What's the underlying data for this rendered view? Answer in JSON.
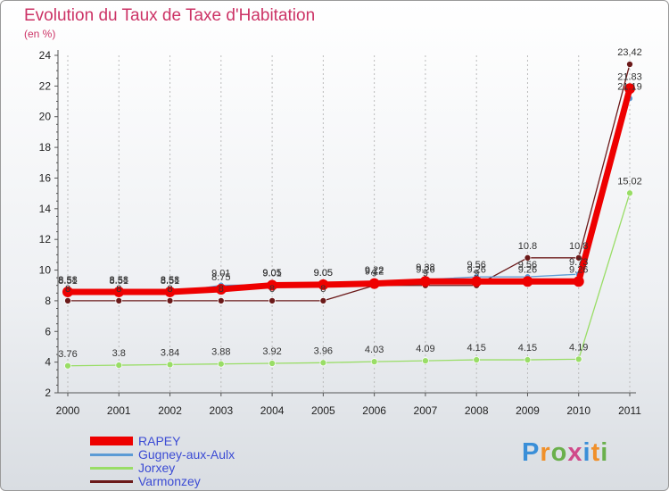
{
  "title": "Evolution du Taux de Taxe d'Habitation",
  "subtitle": "(en %)",
  "logo": {
    "text": "Proxiti",
    "colors": [
      "#3a8fd8",
      "#f0902a",
      "#6ab04c",
      "#d04a8a",
      "#3a8fd8",
      "#f0902a",
      "#6ab04c"
    ]
  },
  "chart_data": {
    "type": "line",
    "title": "Evolution du Taux de Taxe d'Habitation",
    "ylabel": "(en %)",
    "xlabel": "",
    "ylim": [
      2,
      24
    ],
    "yticks": [
      2,
      4,
      6,
      8,
      10,
      12,
      14,
      16,
      18,
      20,
      22,
      24
    ],
    "x": [
      "2000",
      "2001",
      "2002",
      "2003",
      "2004",
      "2005",
      "2006",
      "2007",
      "2008",
      "2009",
      "2010",
      "2011"
    ],
    "series": [
      {
        "name": "Varmonzey",
        "color": "#6b1a1a",
        "values": [
          8,
          8,
          8,
          8,
          8,
          8,
          9,
          9,
          9,
          10.8,
          10.8,
          23.42
        ]
      },
      {
        "name": "Jorxey",
        "color": "#99dd66",
        "values": [
          3.76,
          3.8,
          3.84,
          3.88,
          3.92,
          3.96,
          4.03,
          4.09,
          4.15,
          4.15,
          4.19,
          15.02
        ]
      },
      {
        "name": "Gugney-aux-Aulx",
        "color": "#5b9bd5",
        "values": [
          8.51,
          8.51,
          8.51,
          9.01,
          9.05,
          9.05,
          9.22,
          9.38,
          9.56,
          9.56,
          9.73,
          21.19
        ]
      },
      {
        "name": "RAPEY",
        "color": "#ee0000",
        "values": [
          8.58,
          8.58,
          8.58,
          8.75,
          9.01,
          9.05,
          9.12,
          9.26,
          9.26,
          9.26,
          9.26,
          21.83
        ]
      }
    ],
    "legend_order": [
      "RAPEY",
      "Gugney-aux-Aulx",
      "Jorxey",
      "Varmonzey"
    ]
  }
}
